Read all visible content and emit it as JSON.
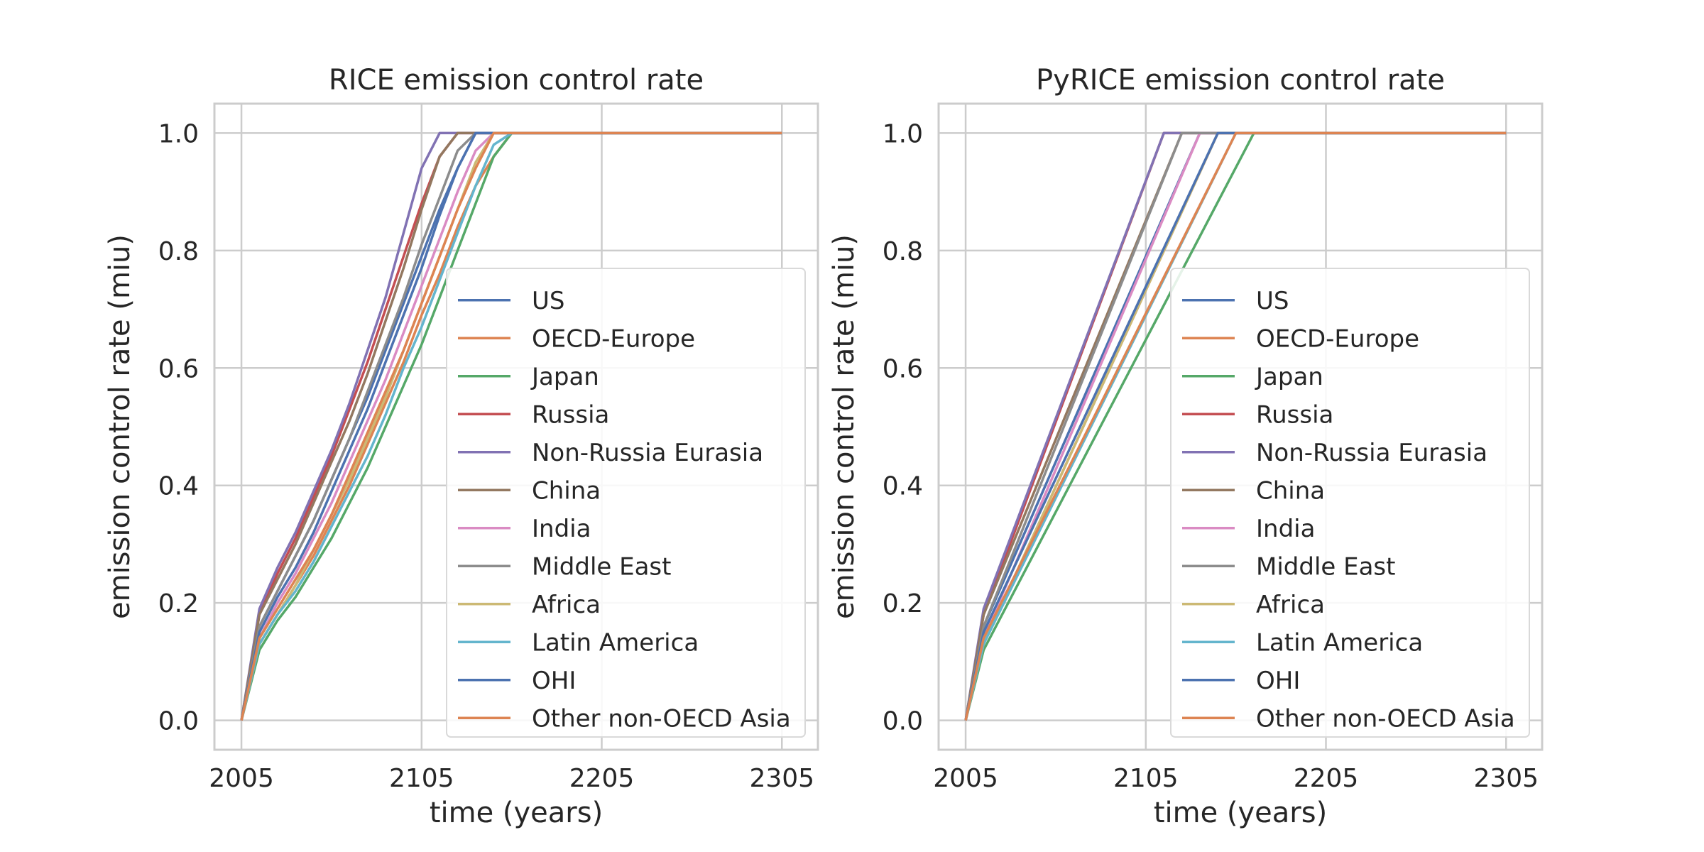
{
  "figure": {
    "colors": [
      "#4c72b0",
      "#dd8452",
      "#55a868",
      "#c44e52",
      "#8172b3",
      "#937860",
      "#da8bc3",
      "#8c8c8c",
      "#ccb974",
      "#64b5cd",
      "#4c72b0",
      "#dd8452"
    ]
  },
  "chart_data": [
    {
      "type": "line",
      "title": "RICE emission control rate",
      "xlabel": "time (years)",
      "ylabel": "emission control rate (miu)",
      "xlim": [
        1990,
        2325
      ],
      "ylim": [
        -0.05,
        1.05
      ],
      "xticks": [
        2005,
        2105,
        2205,
        2305
      ],
      "xtick_labels": [
        "2005",
        "2105",
        "2205",
        "2305"
      ],
      "yticks": [
        0.0,
        0.2,
        0.4,
        0.6,
        0.8,
        1.0
      ],
      "ytick_labels": [
        "0.0",
        "0.2",
        "0.4",
        "0.6",
        "0.8",
        "1.0"
      ],
      "grid": true,
      "legend": "lower right",
      "series": [
        {
          "name": "US",
          "x": [
            2005,
            2015,
            2025,
            2035,
            2045,
            2055,
            2065,
            2075,
            2085,
            2095,
            2105,
            2115,
            2125,
            2135,
            2145,
            2155,
            2305
          ],
          "y": [
            0.0,
            0.16,
            0.22,
            0.28,
            0.34,
            0.41,
            0.48,
            0.55,
            0.63,
            0.71,
            0.79,
            0.87,
            0.94,
            1.0,
            1.0,
            1.0,
            1.0
          ]
        },
        {
          "name": "OECD-Europe",
          "x": [
            2005,
            2015,
            2025,
            2035,
            2045,
            2055,
            2065,
            2075,
            2085,
            2095,
            2105,
            2115,
            2125,
            2135,
            2145,
            2155,
            2305
          ],
          "y": [
            0.0,
            0.13,
            0.18,
            0.23,
            0.28,
            0.34,
            0.4,
            0.47,
            0.54,
            0.61,
            0.69,
            0.76,
            0.84,
            0.91,
            0.96,
            1.0,
            1.0
          ]
        },
        {
          "name": "Japan",
          "x": [
            2005,
            2015,
            2025,
            2035,
            2045,
            2055,
            2065,
            2075,
            2085,
            2095,
            2105,
            2115,
            2125,
            2135,
            2145,
            2155,
            2165,
            2305
          ],
          "y": [
            0.0,
            0.12,
            0.17,
            0.21,
            0.26,
            0.31,
            0.37,
            0.43,
            0.5,
            0.57,
            0.64,
            0.72,
            0.8,
            0.88,
            0.96,
            1.0,
            1.0,
            1.0
          ]
        },
        {
          "name": "Russia",
          "x": [
            2005,
            2015,
            2025,
            2035,
            2045,
            2055,
            2065,
            2075,
            2085,
            2095,
            2105,
            2115,
            2125,
            2135,
            2305
          ],
          "y": [
            0.0,
            0.18,
            0.25,
            0.31,
            0.38,
            0.45,
            0.53,
            0.61,
            0.7,
            0.79,
            0.88,
            0.96,
            1.0,
            1.0,
            1.0
          ]
        },
        {
          "name": "Non-Russia Eurasia",
          "x": [
            2005,
            2015,
            2025,
            2035,
            2045,
            2055,
            2065,
            2075,
            2085,
            2095,
            2105,
            2115,
            2125,
            2305
          ],
          "y": [
            0.0,
            0.19,
            0.26,
            0.32,
            0.39,
            0.46,
            0.54,
            0.63,
            0.72,
            0.83,
            0.94,
            1.0,
            1.0,
            1.0
          ]
        },
        {
          "name": "China",
          "x": [
            2005,
            2015,
            2025,
            2035,
            2045,
            2055,
            2065,
            2075,
            2085,
            2095,
            2105,
            2115,
            2125,
            2305
          ],
          "y": [
            0.0,
            0.18,
            0.24,
            0.3,
            0.37,
            0.44,
            0.51,
            0.59,
            0.68,
            0.77,
            0.87,
            0.96,
            1.0,
            1.0
          ]
        },
        {
          "name": "India",
          "x": [
            2005,
            2015,
            2025,
            2035,
            2045,
            2055,
            2065,
            2075,
            2085,
            2095,
            2105,
            2115,
            2125,
            2135,
            2145,
            2305
          ],
          "y": [
            0.0,
            0.14,
            0.2,
            0.25,
            0.31,
            0.37,
            0.44,
            0.51,
            0.58,
            0.66,
            0.74,
            0.82,
            0.9,
            0.97,
            1.0,
            1.0
          ]
        },
        {
          "name": "Middle East",
          "x": [
            2005,
            2015,
            2025,
            2035,
            2045,
            2055,
            2065,
            2075,
            2085,
            2095,
            2105,
            2115,
            2125,
            2135,
            2145,
            2305
          ],
          "y": [
            0.0,
            0.16,
            0.22,
            0.28,
            0.34,
            0.41,
            0.48,
            0.56,
            0.64,
            0.72,
            0.81,
            0.89,
            0.97,
            1.0,
            1.0,
            1.0
          ]
        },
        {
          "name": "Africa",
          "x": [
            2005,
            2015,
            2025,
            2035,
            2045,
            2055,
            2065,
            2075,
            2085,
            2095,
            2105,
            2115,
            2125,
            2135,
            2145,
            2155,
            2305
          ],
          "y": [
            0.0,
            0.13,
            0.18,
            0.23,
            0.29,
            0.35,
            0.41,
            0.48,
            0.55,
            0.63,
            0.71,
            0.79,
            0.87,
            0.95,
            1.0,
            1.0,
            1.0
          ]
        },
        {
          "name": "Latin America",
          "x": [
            2005,
            2015,
            2025,
            2035,
            2045,
            2055,
            2065,
            2075,
            2085,
            2095,
            2105,
            2115,
            2125,
            2135,
            2145,
            2155,
            2305
          ],
          "y": [
            0.0,
            0.13,
            0.18,
            0.22,
            0.27,
            0.33,
            0.39,
            0.45,
            0.52,
            0.6,
            0.67,
            0.75,
            0.83,
            0.91,
            0.98,
            1.0,
            1.0
          ]
        },
        {
          "name": "OHI",
          "x": [
            2005,
            2015,
            2025,
            2035,
            2045,
            2055,
            2065,
            2075,
            2085,
            2095,
            2105,
            2115,
            2125,
            2135,
            2145,
            2305
          ],
          "y": [
            0.0,
            0.15,
            0.21,
            0.26,
            0.32,
            0.39,
            0.46,
            0.53,
            0.61,
            0.69,
            0.77,
            0.86,
            0.94,
            1.0,
            1.0,
            1.0
          ]
        },
        {
          "name": "Other non-OECD Asia",
          "x": [
            2005,
            2015,
            2025,
            2035,
            2045,
            2055,
            2065,
            2075,
            2085,
            2095,
            2105,
            2115,
            2125,
            2135,
            2145,
            2155,
            2305
          ],
          "y": [
            0.0,
            0.14,
            0.19,
            0.24,
            0.29,
            0.35,
            0.42,
            0.49,
            0.56,
            0.63,
            0.71,
            0.79,
            0.87,
            0.94,
            1.0,
            1.0,
            1.0
          ]
        }
      ]
    },
    {
      "type": "line",
      "title": "PyRICE emission control rate",
      "xlabel": "time (years)",
      "ylabel": "emission control rate (miu)",
      "xlim": [
        1990,
        2325
      ],
      "ylim": [
        -0.05,
        1.05
      ],
      "xticks": [
        2005,
        2105,
        2205,
        2305
      ],
      "xtick_labels": [
        "2005",
        "2105",
        "2205",
        "2305"
      ],
      "yticks": [
        0.0,
        0.2,
        0.4,
        0.6,
        0.8,
        1.0
      ],
      "ytick_labels": [
        "0.0",
        "0.2",
        "0.4",
        "0.6",
        "0.8",
        "1.0"
      ],
      "grid": true,
      "legend": "lower right",
      "series": [
        {
          "name": "US",
          "x": [
            2005,
            2015,
            2135,
            2305
          ],
          "y": [
            0.0,
            0.16,
            1.0,
            1.0
          ]
        },
        {
          "name": "OECD-Europe",
          "x": [
            2005,
            2015,
            2145,
            2305
          ],
          "y": [
            0.0,
            0.13,
            1.0,
            1.0
          ]
        },
        {
          "name": "Japan",
          "x": [
            2005,
            2015,
            2165,
            2305
          ],
          "y": [
            0.0,
            0.12,
            1.0,
            1.0
          ]
        },
        {
          "name": "Russia",
          "x": [
            2005,
            2015,
            2115,
            2305
          ],
          "y": [
            0.0,
            0.18,
            1.0,
            1.0
          ]
        },
        {
          "name": "Non-Russia Eurasia",
          "x": [
            2005,
            2015,
            2115,
            2305
          ],
          "y": [
            0.0,
            0.19,
            1.0,
            1.0
          ]
        },
        {
          "name": "China",
          "x": [
            2005,
            2015,
            2125,
            2305
          ],
          "y": [
            0.0,
            0.18,
            1.0,
            1.0
          ]
        },
        {
          "name": "India",
          "x": [
            2005,
            2015,
            2135,
            2305
          ],
          "y": [
            0.0,
            0.14,
            1.0,
            1.0
          ]
        },
        {
          "name": "Middle East",
          "x": [
            2005,
            2015,
            2125,
            2305
          ],
          "y": [
            0.0,
            0.16,
            1.0,
            1.0
          ]
        },
        {
          "name": "Africa",
          "x": [
            2005,
            2015,
            2145,
            2305
          ],
          "y": [
            0.0,
            0.13,
            1.0,
            1.0
          ]
        },
        {
          "name": "Latin America",
          "x": [
            2005,
            2015,
            2155,
            2305
          ],
          "y": [
            0.0,
            0.13,
            1.0,
            1.0
          ]
        },
        {
          "name": "OHI",
          "x": [
            2005,
            2015,
            2145,
            2305
          ],
          "y": [
            0.0,
            0.15,
            1.0,
            1.0
          ]
        },
        {
          "name": "Other non-OECD Asia",
          "x": [
            2005,
            2015,
            2155,
            2305
          ],
          "y": [
            0.0,
            0.14,
            1.0,
            1.0
          ]
        }
      ]
    }
  ]
}
